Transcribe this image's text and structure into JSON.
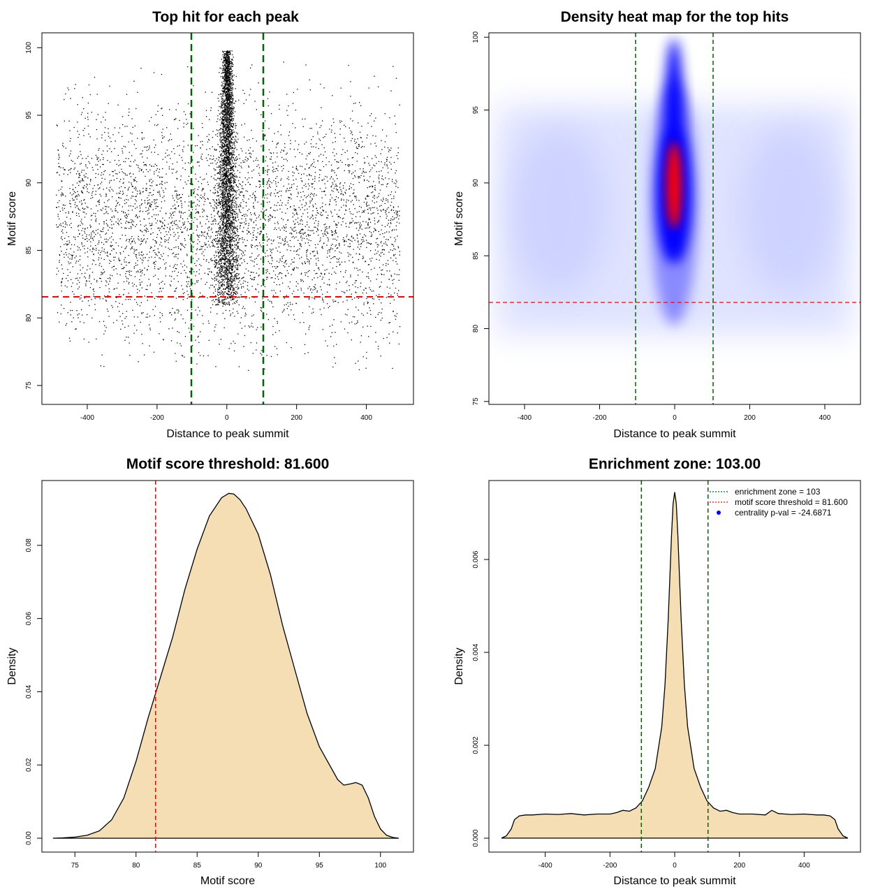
{
  "chart_data": [
    {
      "type": "scatter",
      "title": "Top hit for each peak",
      "xlabel": "Distance to peak summit",
      "ylabel": "Motif score",
      "xlim": [
        -530,
        535
      ],
      "ylim": [
        73.6,
        101.1
      ],
      "xticks": [
        -400,
        -200,
        0,
        200,
        400
      ],
      "yticks": [
        75,
        80,
        85,
        90,
        95,
        100
      ],
      "background_points": {
        "x_range": [
          -490,
          495
        ],
        "y_range": [
          76,
          99
        ],
        "y_center": 87,
        "y_spread": 4.2
      },
      "central_points": {
        "x_center": 0,
        "x_spread_at_low_score": 20,
        "x_spread_at_high_score": 6,
        "y_range": [
          81,
          99.8
        ]
      },
      "vlines": [
        -103,
        103
      ],
      "hline": 81.6,
      "vline_color": "#006400",
      "hline_color": "#ff0000"
    },
    {
      "type": "heatmap",
      "title": "Density heat map for the top hits",
      "xlabel": "Distance to peak summit",
      "ylabel": "Motif score",
      "xlim": [
        -495,
        495
      ],
      "ylim": [
        74.8,
        100.3
      ],
      "xticks": [
        -400,
        -200,
        0,
        200,
        400
      ],
      "yticks": [
        75,
        80,
        85,
        90,
        95,
        100
      ],
      "colors": [
        "#ffffff",
        "#0000ff",
        "#ff0000"
      ],
      "hotspot": {
        "x": 0,
        "y_range": [
          82,
          99
        ],
        "y_peak": 89.5
      },
      "vlines": [
        -103,
        103
      ],
      "hline": 81.6,
      "vline_color": "#006400",
      "hline_color": "#ff0000"
    },
    {
      "type": "area",
      "title": "Motif score threshold: 81.600",
      "xlabel": "Motif score",
      "ylabel": "Density",
      "xlim": [
        72.3,
        102.7
      ],
      "ylim": [
        -0.0038,
        0.0977
      ],
      "xticks": [
        75,
        80,
        85,
        90,
        95,
        100
      ],
      "yticks": [
        0.0,
        0.02,
        0.04,
        0.06,
        0.08
      ],
      "ytick_labels": [
        "0.00",
        "0.02",
        "0.04",
        "0.06",
        "0.08"
      ],
      "x": [
        73.2,
        74,
        75,
        76,
        77,
        78,
        79,
        80,
        81,
        82,
        83,
        84,
        85,
        86,
        87,
        87.6,
        88,
        88.5,
        89,
        90,
        91,
        92,
        93,
        94,
        95,
        95.5,
        96,
        96.5,
        97,
        97.5,
        98,
        98.5,
        99,
        99.5,
        100,
        100.5,
        101,
        101.5
      ],
      "values": [
        0.0,
        0.0001,
        0.0003,
        0.0008,
        0.002,
        0.005,
        0.011,
        0.021,
        0.033,
        0.044,
        0.055,
        0.068,
        0.079,
        0.088,
        0.093,
        0.0942,
        0.094,
        0.0925,
        0.09,
        0.083,
        0.072,
        0.058,
        0.046,
        0.034,
        0.025,
        0.022,
        0.019,
        0.016,
        0.0145,
        0.0148,
        0.0152,
        0.0145,
        0.011,
        0.006,
        0.0025,
        0.0008,
        0.0002,
        0.0
      ],
      "fill": "#f5deb3",
      "vlines": [
        81.6
      ],
      "vline_color": "#ff0000"
    },
    {
      "type": "area",
      "title": "Enrichment zone: 103.00",
      "xlabel": "Distance to peak summit",
      "ylabel": "Density",
      "xlim": [
        -574,
        574
      ],
      "ylim": [
        -0.0003,
        0.0077
      ],
      "xticks": [
        -400,
        -200,
        0,
        200,
        400
      ],
      "yticks": [
        0.0,
        0.002,
        0.004,
        0.006
      ],
      "ytick_labels": [
        "0.000",
        "0.002",
        "0.004",
        "0.006"
      ],
      "x": [
        -535,
        -520,
        -505,
        -495,
        -480,
        -460,
        -440,
        -400,
        -360,
        -320,
        -280,
        -240,
        -200,
        -180,
        -160,
        -140,
        -120,
        -100,
        -80,
        -60,
        -40,
        -30,
        -20,
        -10,
        -5,
        0,
        5,
        10,
        20,
        30,
        40,
        60,
        80,
        100,
        120,
        140,
        160,
        180,
        200,
        240,
        280,
        300,
        320,
        360,
        400,
        440,
        460,
        480,
        495,
        505,
        520,
        535
      ],
      "values": [
        0.0,
        5e-05,
        0.0002,
        0.0004,
        0.00048,
        0.0005,
        0.0005,
        0.00052,
        0.00051,
        0.00053,
        0.0005,
        0.00052,
        0.00052,
        0.00055,
        0.0006,
        0.00058,
        0.00065,
        0.0008,
        0.0011,
        0.0015,
        0.0024,
        0.0033,
        0.0047,
        0.0065,
        0.0072,
        0.00745,
        0.0072,
        0.0065,
        0.0047,
        0.0033,
        0.0024,
        0.0015,
        0.0011,
        0.0008,
        0.00065,
        0.00058,
        0.0006,
        0.00055,
        0.00052,
        0.00052,
        0.0005,
        0.0006,
        0.00053,
        0.00051,
        0.00052,
        0.0005,
        0.0005,
        0.00048,
        0.0004,
        0.0002,
        5e-05,
        0.0
      ],
      "fill": "#f5deb3",
      "vlines": [
        -103,
        103
      ],
      "vline_color": "#006400",
      "legend": {
        "position": "top-right",
        "entries": [
          {
            "label": "enrichment zone = 103",
            "style": "dotted",
            "color": "#006400"
          },
          {
            "label": "motif score threshold = 81.600",
            "style": "dotted",
            "color": "#ff0000"
          },
          {
            "label": "centrality p-val = -24.6871",
            "style": "point",
            "color": "#0000ff"
          }
        ]
      }
    }
  ]
}
